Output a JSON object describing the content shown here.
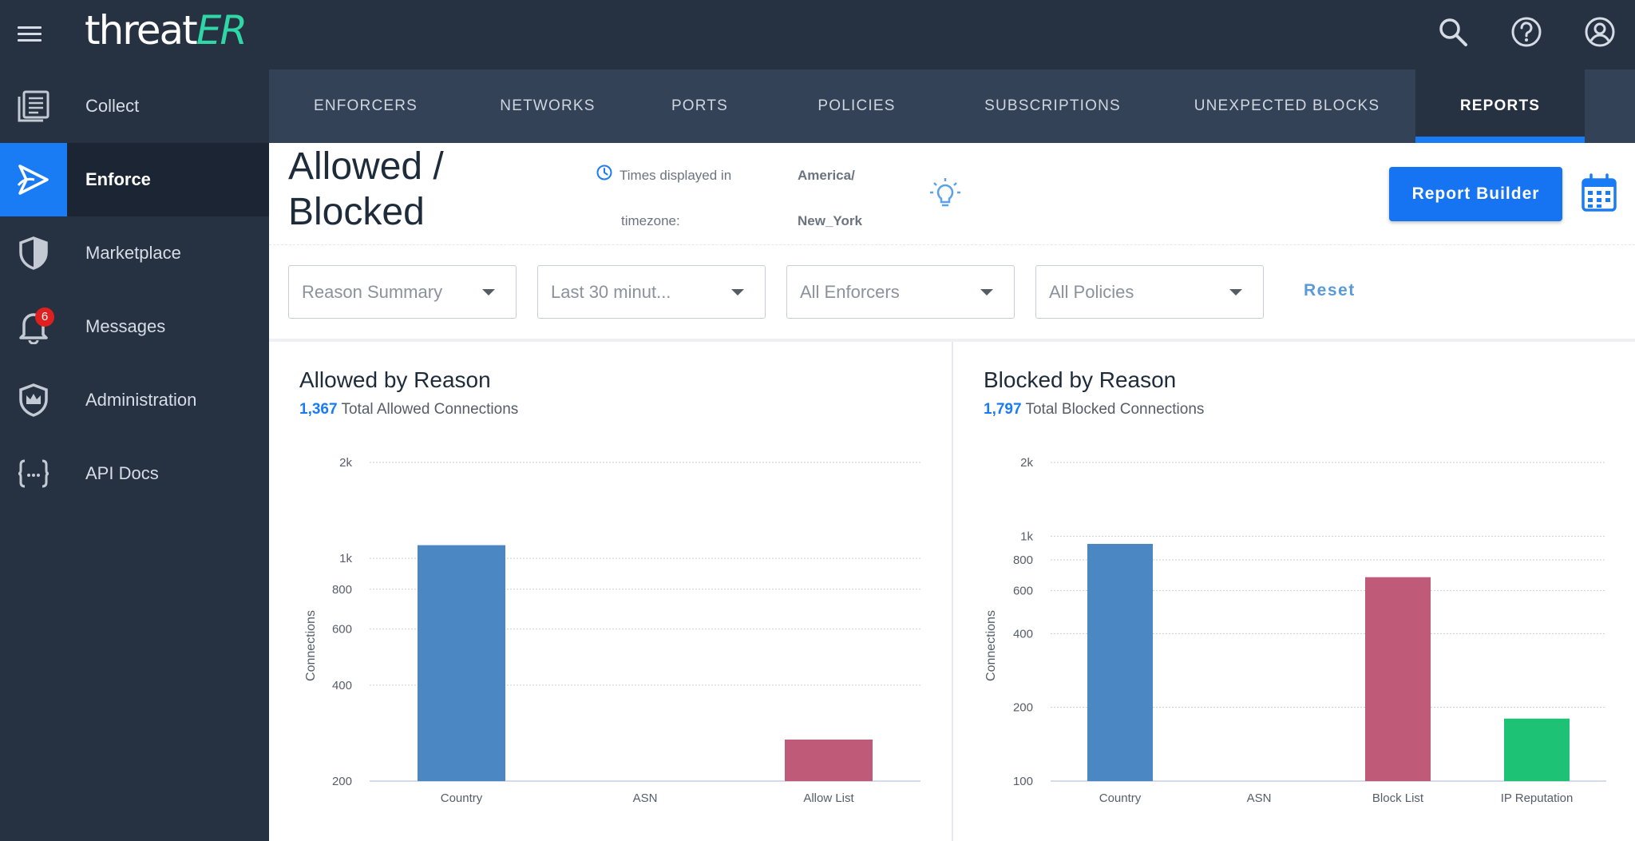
{
  "header": {
    "logo_main": "threat",
    "logo_accent": "ER",
    "icons": [
      "search-icon",
      "help-icon",
      "account-icon"
    ]
  },
  "sidebar": {
    "items": [
      {
        "label": "Collect",
        "icon": "collect-icon",
        "active": false
      },
      {
        "label": "Enforce",
        "icon": "enforce-icon",
        "active": true
      },
      {
        "label": "Marketplace",
        "icon": "shield-icon",
        "active": false
      },
      {
        "label": "Messages",
        "icon": "bell-icon",
        "active": false,
        "badge": "6"
      },
      {
        "label": "Administration",
        "icon": "crown-shield-icon",
        "active": false
      },
      {
        "label": "API Docs",
        "icon": "braces-icon",
        "active": false
      }
    ]
  },
  "tabs": [
    {
      "label": "ENFORCERS",
      "active": false
    },
    {
      "label": "NETWORKS",
      "active": false
    },
    {
      "label": "PORTS",
      "active": false
    },
    {
      "label": "POLICIES",
      "active": false
    },
    {
      "label": "SUBSCRIPTIONS",
      "active": false
    },
    {
      "label": "UNEXPECTED BLOCKS",
      "active": false
    },
    {
      "label": "REPORTS",
      "active": true
    }
  ],
  "page": {
    "title": "Allowed / Blocked",
    "timezone_label_1": "Times displayed in",
    "timezone_label_2": "timezone:",
    "timezone_value_1": "America/",
    "timezone_value_2": "New_York",
    "report_builder_label": "Report Builder"
  },
  "filters": {
    "reason": "Reason Summary",
    "time": "Last 30 minut...",
    "enforcers": "All Enforcers",
    "policies": "All Policies",
    "reset_label": "Reset"
  },
  "colors": {
    "country": "#4a87c3",
    "list": "#bf5a79",
    "ip_reputation": "#1ec275",
    "accent": "#1a7cf5"
  },
  "panels": {
    "allowed": {
      "title": "Allowed by Reason",
      "total": "1,367",
      "total_label": "Total Allowed Connections"
    },
    "blocked": {
      "title": "Blocked by Reason",
      "total": "1,797",
      "total_label": "Total Blocked Connections"
    }
  },
  "chart_data": [
    {
      "type": "bar",
      "title": "Allowed by Reason",
      "ylabel": "Connections",
      "scale": "log",
      "categories": [
        "Country",
        "ASN",
        "Allow List"
      ],
      "values": [
        1100,
        0,
        270
      ],
      "yticks": [
        200,
        400,
        600,
        800,
        1000,
        2000
      ],
      "ytick_labels": [
        "200",
        "400",
        "600",
        "800",
        "1k",
        "2k"
      ],
      "ylim": [
        200,
        2000
      ],
      "colors": [
        "#4a87c3",
        "#4a87c3",
        "#bf5a79"
      ],
      "grid": true
    },
    {
      "type": "bar",
      "title": "Blocked by Reason",
      "ylabel": "Connections",
      "scale": "log",
      "categories": [
        "Country",
        "ASN",
        "Block List",
        "IP Reputation"
      ],
      "values": [
        930,
        0,
        680,
        180
      ],
      "yticks": [
        100,
        200,
        400,
        600,
        800,
        1000,
        2000
      ],
      "ytick_labels": [
        "100",
        "200",
        "400",
        "600",
        "800",
        "1k",
        "2k"
      ],
      "ylim": [
        100,
        2000
      ],
      "colors": [
        "#4a87c3",
        "#4a87c3",
        "#bf5a79",
        "#1ec275"
      ],
      "grid": true
    }
  ]
}
